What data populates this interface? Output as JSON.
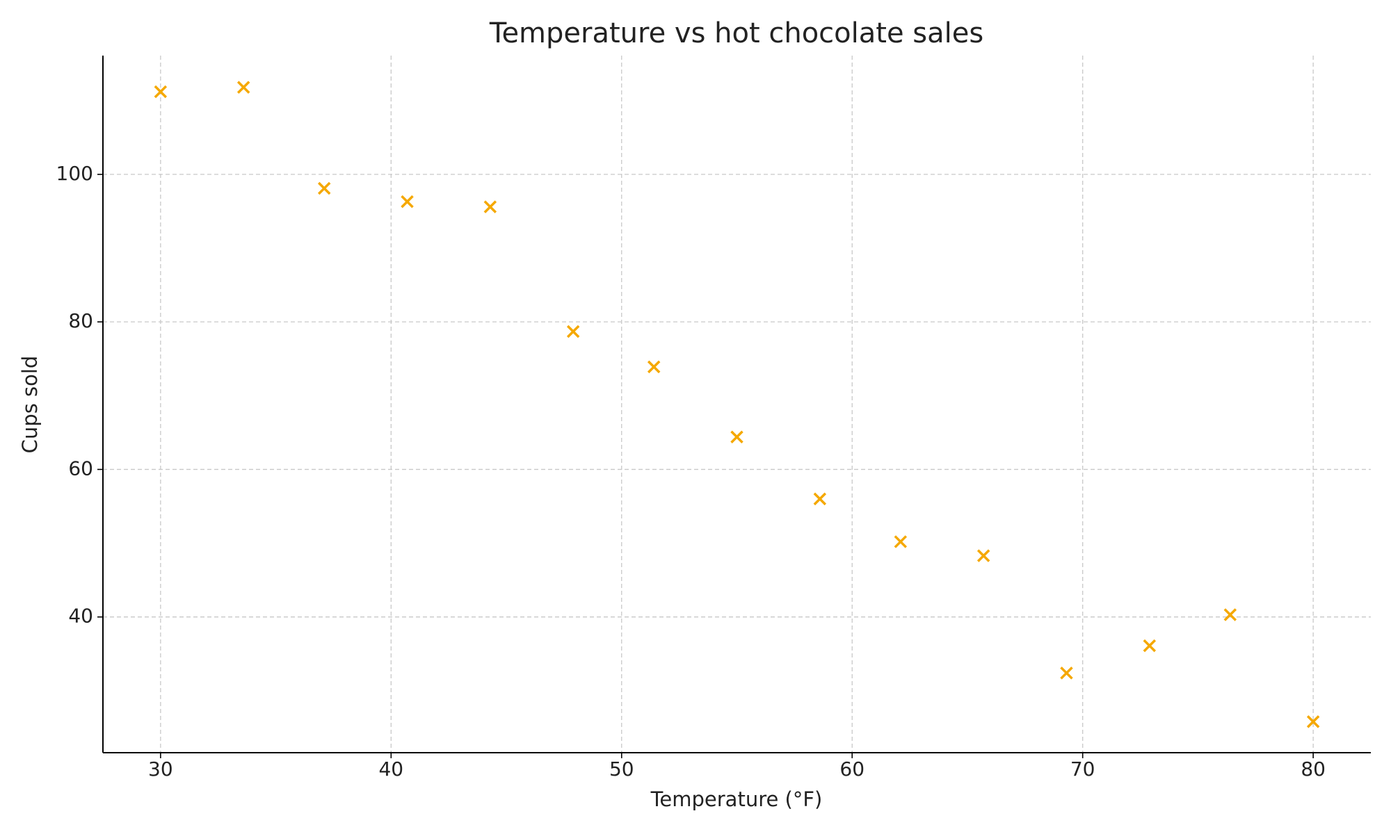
{
  "chart_data": {
    "type": "scatter",
    "title": "Temperature vs hot chocolate sales",
    "x_label": "Temperature (°F)",
    "y_label": "Cups sold",
    "x": [
      30,
      33.6,
      37.1,
      40.7,
      44.3,
      47.9,
      51.4,
      55,
      58.6,
      62.1,
      65.7,
      69.3,
      72.9,
      76.4,
      80
    ],
    "values": [
      111.2,
      111.8,
      98.1,
      96.3,
      95.6,
      78.7,
      73.9,
      64.4,
      56.0,
      50.2,
      48.3,
      32.4,
      36.1,
      40.3,
      25.8
    ],
    "color": "#f5a800",
    "marker": "x",
    "xlim": [
      27.5,
      82.5
    ],
    "xticks": [
      30,
      40,
      50,
      60,
      70,
      80
    ],
    "ylim": [
      21.6,
      116.1
    ],
    "yticks": [
      40,
      60,
      80,
      100
    ],
    "grid": true
  }
}
